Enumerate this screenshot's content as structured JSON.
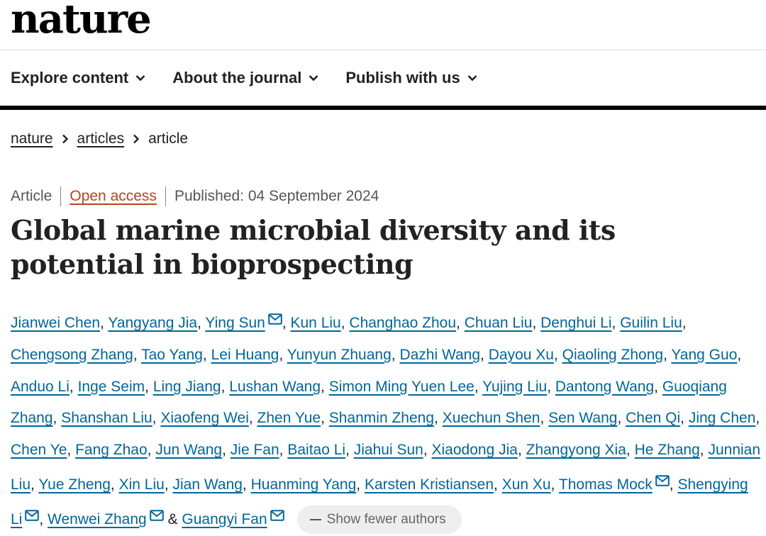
{
  "logo": "nature",
  "nav": [
    "Explore content",
    "About the journal",
    "Publish with us"
  ],
  "breadcrumb": {
    "root": "nature",
    "section": "articles",
    "current": "article"
  },
  "meta": {
    "type": "Article",
    "access": "Open access",
    "published": "Published: 04 September 2024"
  },
  "title": "Global marine microbial diversity and its potential in bioprospecting",
  "authors": [
    {
      "name": "Jianwei Chen",
      "mail": false
    },
    {
      "name": "Yangyang Jia",
      "mail": false
    },
    {
      "name": "Ying Sun",
      "mail": true
    },
    {
      "name": "Kun Liu",
      "mail": false
    },
    {
      "name": "Changhao Zhou",
      "mail": false
    },
    {
      "name": "Chuan Liu",
      "mail": false
    },
    {
      "name": "Denghui Li",
      "mail": false
    },
    {
      "name": "Guilin Liu",
      "mail": false
    },
    {
      "name": "Chengsong Zhang",
      "mail": false
    },
    {
      "name": "Tao Yang",
      "mail": false
    },
    {
      "name": "Lei Huang",
      "mail": false
    },
    {
      "name": "Yunyun Zhuang",
      "mail": false
    },
    {
      "name": "Dazhi Wang",
      "mail": false
    },
    {
      "name": "Dayou Xu",
      "mail": false
    },
    {
      "name": "Qiaoling Zhong",
      "mail": false
    },
    {
      "name": "Yang Guo",
      "mail": false
    },
    {
      "name": "Anduo Li",
      "mail": false
    },
    {
      "name": "Inge Seim",
      "mail": false
    },
    {
      "name": "Ling Jiang",
      "mail": false
    },
    {
      "name": "Lushan Wang",
      "mail": false
    },
    {
      "name": "Simon Ming Yuen Lee",
      "mail": false
    },
    {
      "name": "Yujing Liu",
      "mail": false
    },
    {
      "name": "Dantong Wang",
      "mail": false
    },
    {
      "name": "Guoqiang Zhang",
      "mail": false
    },
    {
      "name": "Shanshan Liu",
      "mail": false
    },
    {
      "name": "Xiaofeng Wei",
      "mail": false
    },
    {
      "name": "Zhen Yue",
      "mail": false
    },
    {
      "name": "Shanmin Zheng",
      "mail": false
    },
    {
      "name": "Xuechun Shen",
      "mail": false
    },
    {
      "name": "Sen Wang",
      "mail": false
    },
    {
      "name": "Chen Qi",
      "mail": false
    },
    {
      "name": "Jing Chen",
      "mail": false
    },
    {
      "name": "Chen Ye",
      "mail": false
    },
    {
      "name": "Fang Zhao",
      "mail": false
    },
    {
      "name": "Jun Wang",
      "mail": false
    },
    {
      "name": "Jie Fan",
      "mail": false
    },
    {
      "name": "Baitao Li",
      "mail": false
    },
    {
      "name": "Jiahui Sun",
      "mail": false
    },
    {
      "name": "Xiaodong Jia",
      "mail": false
    },
    {
      "name": "Zhangyong Xia",
      "mail": false
    },
    {
      "name": "He Zhang",
      "mail": false
    },
    {
      "name": "Junnian Liu",
      "mail": false
    },
    {
      "name": "Yue Zheng",
      "mail": false
    },
    {
      "name": "Xin Liu",
      "mail": false
    },
    {
      "name": "Jian Wang",
      "mail": false
    },
    {
      "name": "Huanming Yang",
      "mail": false
    },
    {
      "name": "Karsten Kristiansen",
      "mail": false
    },
    {
      "name": "Xun Xu",
      "mail": false
    },
    {
      "name": "Thomas Mock",
      "mail": true
    },
    {
      "name": "Shengying Li",
      "mail": true
    },
    {
      "name": "Wenwei Zhang",
      "mail": true
    },
    {
      "name": "Guangyi Fan",
      "mail": true
    }
  ],
  "show_fewer": "Show fewer authors",
  "colors": {
    "link": "#006699",
    "open_access": "#b3451f",
    "text": "#222222"
  }
}
